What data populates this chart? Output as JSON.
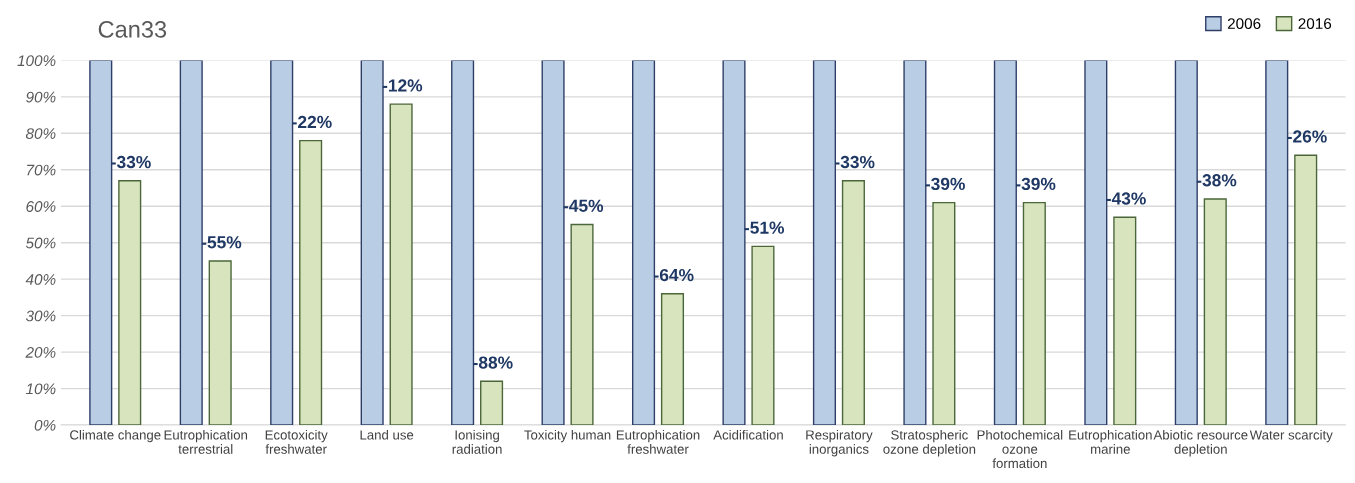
{
  "chart_data": {
    "type": "bar",
    "title": "Can33",
    "categories": [
      "Climate change",
      "Eutrophication\nterrestrial",
      "Ecotoxicity\nfreshwater",
      "Land use",
      "Ionising\nradiation",
      "Toxicity human",
      "Eutrophication\nfreshwater",
      "Acidification",
      "Respiratory\ninorganics",
      "Stratospheric\nozone depletion",
      "Photochemical\nozone\nformation",
      "Eutrophication\nmarine",
      "Abiotic resource\ndepletion",
      "Water scarcity"
    ],
    "series": [
      {
        "name": "2006",
        "color": "#b9cde5",
        "values": [
          100,
          100,
          100,
          100,
          100,
          100,
          100,
          100,
          100,
          100,
          100,
          100,
          100,
          100
        ]
      },
      {
        "name": "2016",
        "color": "#d7e4bd",
        "values": [
          67,
          45,
          78,
          88,
          12,
          55,
          36,
          49,
          67,
          61,
          61,
          57,
          62,
          74
        ]
      }
    ],
    "annotations": [
      {
        "text": "-33%",
        "x": "Climate change",
        "y": 67
      },
      {
        "text": "-55%",
        "x": "Eutrophication\nterrestrial",
        "y": 45
      },
      {
        "text": "-22%",
        "x": "Ecotoxicity\nfreshwater",
        "y": 78
      },
      {
        "text": "-12%",
        "x": "Land use",
        "y": 88
      },
      {
        "text": "-88%",
        "x": "Ionising\nradiation",
        "y": 12
      },
      {
        "text": "-45%",
        "x": "Toxicity human",
        "y": 55
      },
      {
        "text": "-64%",
        "x": "Eutrophication\nfreshwater",
        "y": 36
      },
      {
        "text": "-51%",
        "x": "Acidification",
        "y": 49
      },
      {
        "text": "-33%",
        "x": "Respiratory\ninorganics",
        "y": 67
      },
      {
        "text": "-39%",
        "x": "Stratospheric\nozone depletion",
        "y": 61
      },
      {
        "text": "-39%",
        "x": "Photochemical\nozone\nformation",
        "y": 61
      },
      {
        "text": "-43%",
        "x": "Eutrophication\nmarine",
        "y": 57
      },
      {
        "text": "-38%",
        "x": "Abiotic resource\ndepletion",
        "y": 62
      },
      {
        "text": "-26%",
        "x": "Water scarcity",
        "y": 74
      }
    ],
    "ylim": [
      0,
      100
    ],
    "yticks": [
      {
        "value": 0,
        "label": "0%"
      },
      {
        "value": 10,
        "label": "10%"
      },
      {
        "value": 20,
        "label": "20%"
      },
      {
        "value": 30,
        "label": "30%"
      },
      {
        "value": 40,
        "label": "40%"
      },
      {
        "value": 50,
        "label": "50%"
      },
      {
        "value": 60,
        "label": "60%"
      },
      {
        "value": 70,
        "label": "70%"
      },
      {
        "value": 80,
        "label": "80%"
      },
      {
        "value": 90,
        "label": "90%"
      },
      {
        "value": 100,
        "label": "100%"
      }
    ],
    "grid": "y",
    "legend": "top right"
  }
}
